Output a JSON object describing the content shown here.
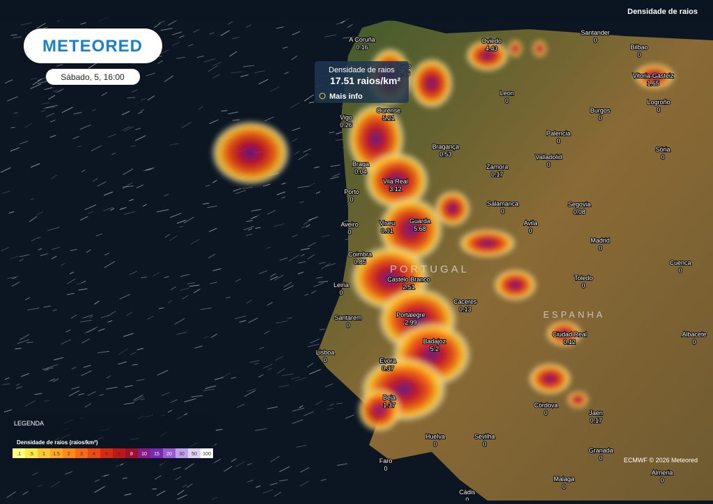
{
  "header": {
    "logo": "METEORED",
    "date": "Sábado, 5, 16:00",
    "layer": "Densidade de raios"
  },
  "tooltip": {
    "title": "Densidade de raios",
    "value": "17.51 raios/km²",
    "link": "Mais info"
  },
  "legend": {
    "title": "LEGENDA",
    "subtitle": "Densidade de raios (raios/km²)",
    "ticks": [
      ".1",
      ".5",
      "1",
      "1.5",
      "2",
      "3",
      "4",
      "5",
      "6",
      "8",
      "10",
      "15",
      "20",
      "30",
      "50",
      "100"
    ]
  },
  "countries": [
    "PORTUGAL",
    "ESPANHA"
  ],
  "cities": [
    {
      "name": "A Coruña",
      "value": 0.16
    },
    {
      "name": "Lugo",
      "value": 1.46
    },
    {
      "name": "Oviedo",
      "value": 4.43
    },
    {
      "name": "Santander",
      "value": 0
    },
    {
      "name": "Bilbao",
      "value": 0
    },
    {
      "name": "Vitoria-Gasteiz",
      "value": 1.65
    },
    {
      "name": "Leon",
      "value": 0
    },
    {
      "name": "Burgos",
      "value": 0
    },
    {
      "name": "Logroño",
      "value": 0
    },
    {
      "name": "Vigo",
      "value": 0.26
    },
    {
      "name": "Ourense",
      "value": 5.21
    },
    {
      "name": "Palencia",
      "value": 0
    },
    {
      "name": "Sória",
      "value": 0
    },
    {
      "name": "Braga",
      "value": 0.04
    },
    {
      "name": "Bragança",
      "value": 0.53
    },
    {
      "name": "Zamora",
      "value": 0.17
    },
    {
      "name": "Valladolid",
      "value": 0
    },
    {
      "name": "Vila Real",
      "value": 3.12
    },
    {
      "name": "Porto",
      "value": 0
    },
    {
      "name": "Salamanca",
      "value": 0
    },
    {
      "name": "Segovia",
      "value": 0.08
    },
    {
      "name": "Aveiro",
      "value": 0
    },
    {
      "name": "Viseu",
      "value": 0.01
    },
    {
      "name": "Guarda",
      "value": 5.68
    },
    {
      "name": "Avila",
      "value": 0
    },
    {
      "name": "Madrid",
      "value": 0
    },
    {
      "name": "Coimbra",
      "value": 0.85
    },
    {
      "name": "Cuenca",
      "value": 0
    },
    {
      "name": "Leiria",
      "value": 0
    },
    {
      "name": "Castelo Branco",
      "value": 2.51
    },
    {
      "name": "Toledo",
      "value": 0
    },
    {
      "name": "Caceres",
      "value": 0.13
    },
    {
      "name": "Santarem",
      "value": 0
    },
    {
      "name": "Portalegre",
      "value": 2.99
    },
    {
      "name": "Ciudad Real",
      "value": 0.12
    },
    {
      "name": "Albacete",
      "value": 0
    },
    {
      "name": "Badajoz",
      "value": 5.2
    },
    {
      "name": "Lisboa",
      "value": 0
    },
    {
      "name": "Evora",
      "value": 0.37
    },
    {
      "name": "Córdova",
      "value": 0
    },
    {
      "name": "Jaen",
      "value": 0.17
    },
    {
      "name": "Beja",
      "value": 1.37
    },
    {
      "name": "Huelva",
      "value": 0
    },
    {
      "name": "Sevilha",
      "value": 0
    },
    {
      "name": "Granada",
      "value": 0
    },
    {
      "name": "Faro",
      "value": 0
    },
    {
      "name": "Malaga",
      "value": 0
    },
    {
      "name": "Almeria",
      "value": 0
    },
    {
      "name": "Cádis",
      "value": 0
    }
  ],
  "credit": "ECMWF © 2026 Meteored"
}
